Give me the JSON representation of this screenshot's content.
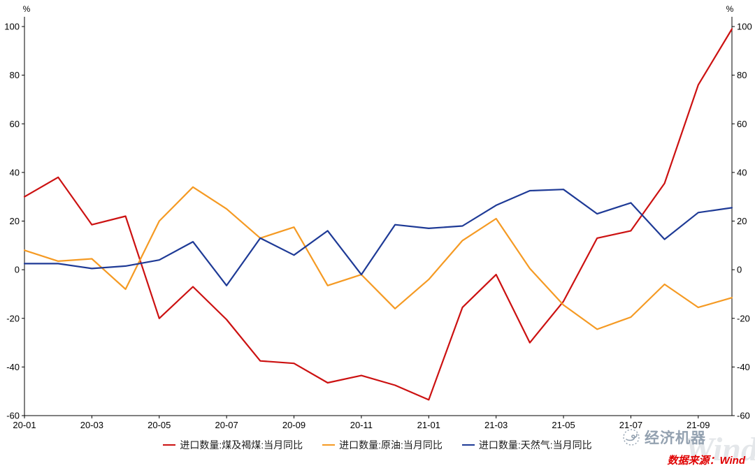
{
  "chart_data": {
    "type": "line",
    "title": "",
    "unit_label": "%",
    "ylim": [
      -60,
      100
    ],
    "ytick_step": 20,
    "x_label_every": 2,
    "grid": false,
    "legend_position": "bottom",
    "categories": [
      "20-01",
      "20-02",
      "20-03",
      "20-04",
      "20-05",
      "20-06",
      "20-07",
      "20-08",
      "20-09",
      "20-10",
      "20-11",
      "20-12",
      "21-01",
      "21-02",
      "21-03",
      "21-04",
      "21-05",
      "21-06",
      "21-07",
      "21-08",
      "21-09",
      "21-10"
    ],
    "series": [
      {
        "name": "进口数量:煤及褐煤:当月同比",
        "color": "#CC1111",
        "values": [
          30,
          38,
          18.5,
          22,
          -20,
          -7,
          -20.5,
          -37.5,
          -38.5,
          -46.5,
          -43.5,
          -47.5,
          -53.5,
          -15.5,
          -2,
          -30,
          -13,
          13,
          16,
          35.5,
          76,
          99
        ]
      },
      {
        "name": "进口数量:原油:当月同比",
        "color": "#F59A23",
        "values": [
          8,
          3.5,
          4.5,
          -8,
          20,
          34,
          25,
          13,
          17.5,
          -6.5,
          -2,
          -16,
          -4,
          12,
          21,
          0.5,
          -14.5,
          -24.5,
          -19.5,
          -6,
          -15.5,
          -11.5
        ]
      },
      {
        "name": "进口数量:天然气:当月同比",
        "color": "#1E3A96",
        "values": [
          2.5,
          2.5,
          0.5,
          1.5,
          4,
          11.5,
          -6.5,
          13,
          6,
          16,
          -2,
          18.5,
          17,
          18,
          26.5,
          32.5,
          33,
          23,
          27.5,
          12.5,
          23.5,
          25.5
        ]
      }
    ]
  },
  "footer": {
    "source": "数据来源：Wind"
  },
  "watermark": {
    "brand": "经济机器",
    "faint": "Wind"
  }
}
